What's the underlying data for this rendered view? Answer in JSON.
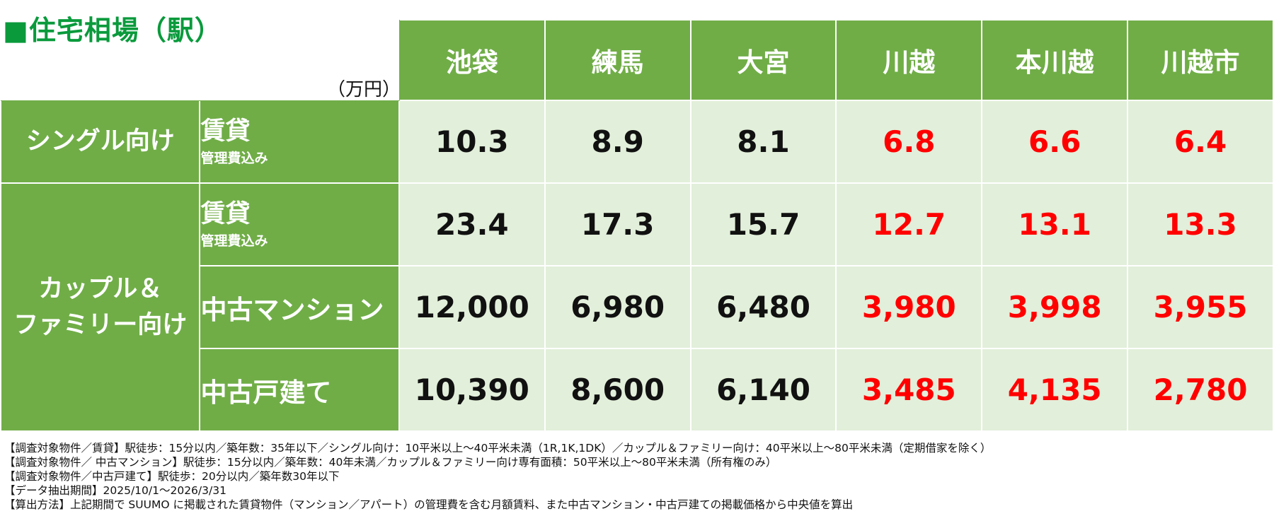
{
  "title": "■住宅相場（駅）",
  "unit": "（万円）",
  "colors": {
    "header_green": "#70ad47",
    "cell_light": "#e2efda",
    "highlight_red": "#ff0000",
    "title_green": "#0a9a3c"
  },
  "stations": [
    "池袋",
    "練馬",
    "大宮",
    "川越",
    "本川越",
    "川越市"
  ],
  "groups": {
    "single": "シングル向け",
    "family_line1": "カップル＆",
    "family_line2": "ファミリー向け"
  },
  "rows": [
    {
      "label": "賃貸",
      "note": "管理費込み",
      "values": [
        "10.3",
        "8.9",
        "8.1",
        "6.8",
        "6.6",
        "6.4"
      ]
    },
    {
      "label": "賃貸",
      "note": "管理費込み",
      "values": [
        "23.4",
        "17.3",
        "15.7",
        "12.7",
        "13.1",
        "13.3"
      ]
    },
    {
      "label": "中古マンション",
      "note": "",
      "values": [
        "12,000",
        "6,980",
        "6,480",
        "3,980",
        "3,998",
        "3,955"
      ]
    },
    {
      "label": "中古戸建て",
      "note": "",
      "values": [
        "10,390",
        "8,600",
        "6,140",
        "3,485",
        "4,135",
        "2,780"
      ]
    }
  ],
  "footnotes": [
    "【調査対象物件／賃貸】駅徒歩：15分以内／築年数：35年以下／シングル向け：10平米以上～40平米未満（1R,1K,1DK）／カップル＆ファミリー向け：40平米以上～80平米未満（定期借家を除く）",
    "【調査対象物件／ 中古マンション】駅徒歩：15分以内／築年数：40年未満／カップル＆ファミリー向け専有面積：50平米以上～80平米未満（所有権のみ）",
    "【調査対象物件／中古戸建て】駅徒歩：20分以内／築年数30年以下",
    "【データ抽出期間】2025/10/1～2026/3/31",
    "【算出方法】上記期間で SUUMO に掲載された賃貸物件（マンション／アパート）の管理費を含む月額賃料、また中古マンション・中古戸建ての掲載価格から中央値を算出"
  ]
}
